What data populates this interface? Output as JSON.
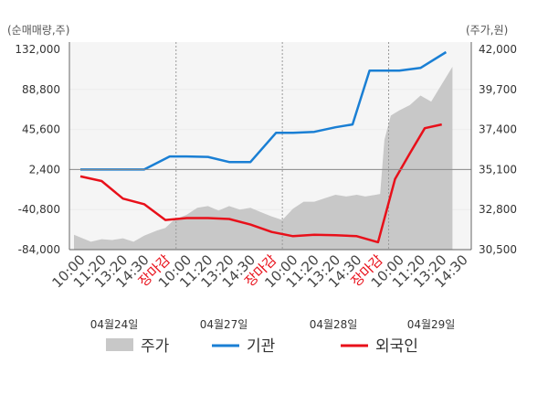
{
  "chart_data": {
    "type": "line",
    "left_axis_label": "(순매매량,주)",
    "right_axis_label": "(주가,원)",
    "left_ticks": [
      "132,000",
      "88,800",
      "45,600",
      "2,400",
      "-40,800",
      "-84,000"
    ],
    "right_ticks": [
      "42,000",
      "39,700",
      "37,400",
      "35,100",
      "32,800",
      "30,500"
    ],
    "left_range": [
      -84000,
      132000
    ],
    "right_range": [
      30500,
      42000
    ],
    "x_labels": [
      {
        "text": "10:00",
        "close": false
      },
      {
        "text": "11:20",
        "close": false
      },
      {
        "text": "13:20",
        "close": false
      },
      {
        "text": "14:30",
        "close": false
      },
      {
        "text": "장마감",
        "close": true
      },
      {
        "text": "10:00",
        "close": false
      },
      {
        "text": "11:20",
        "close": false
      },
      {
        "text": "13:20",
        "close": false
      },
      {
        "text": "14:30",
        "close": false
      },
      {
        "text": "장마감",
        "close": true
      },
      {
        "text": "10:00",
        "close": false
      },
      {
        "text": "11:20",
        "close": false
      },
      {
        "text": "13:20",
        "close": false
      },
      {
        "text": "14:30",
        "close": false
      },
      {
        "text": "장마감",
        "close": true
      },
      {
        "text": "10:00",
        "close": false
      },
      {
        "text": "11:20",
        "close": false
      },
      {
        "text": "13:20",
        "close": false
      },
      {
        "text": "14:30",
        "close": false
      }
    ],
    "dates": [
      "04월24일",
      "04월27일",
      "04월28일",
      "04월29일"
    ],
    "series": [
      {
        "name": "기관",
        "color": "#1a7fd4",
        "axis": "left",
        "x": [
          0,
          1,
          2,
          3,
          4.2,
          5,
          6,
          7,
          8,
          9.2,
          10,
          11,
          12,
          12.8,
          13.6,
          14.3,
          15,
          16,
          17.2
        ],
        "values": [
          2400,
          2400,
          2400,
          2400,
          16500,
          16500,
          16000,
          10500,
          10500,
          42000,
          42000,
          43000,
          48000,
          51000,
          109000,
          109000,
          109000,
          112000,
          129000
        ]
      },
      {
        "name": "외국인",
        "color": "#e8101a",
        "axis": "left",
        "x": [
          0,
          1,
          2,
          3,
          4,
          5,
          6,
          7,
          8,
          9,
          10,
          11,
          12,
          13,
          14,
          14.8,
          15.5,
          16.2,
          17
        ],
        "values": [
          -5000,
          -10000,
          -29000,
          -35000,
          -52000,
          -50000,
          -50000,
          -51000,
          -57000,
          -65000,
          -69500,
          -68000,
          -68500,
          -69500,
          -76000,
          -8000,
          20000,
          47000,
          51000
        ]
      }
    ],
    "price_series": {
      "name": "주가",
      "color": "#c8c8c8",
      "axis": "right",
      "x": [
        -0.3,
        0.5,
        1,
        1.5,
        2,
        2.5,
        3,
        3.6,
        4,
        4.4,
        5,
        5.5,
        6,
        6.5,
        7,
        7.5,
        8,
        8.5,
        9,
        9.5,
        10,
        10.5,
        11,
        11.5,
        12,
        12.5,
        13,
        13.4,
        13.9,
        14.1,
        14.3,
        14.6,
        15,
        15.5,
        16,
        16.5,
        17,
        17.5
      ],
      "values": [
        31350,
        30950,
        31100,
        31050,
        31150,
        30950,
        31300,
        31600,
        31750,
        32200,
        32500,
        32900,
        33000,
        32750,
        33000,
        32800,
        32900,
        32650,
        32400,
        32200,
        32850,
        33250,
        33250,
        33450,
        33650,
        33550,
        33650,
        33550,
        33650,
        33700,
        36800,
        38200,
        38500,
        38800,
        39350,
        39000,
        40000,
        41000
      ]
    },
    "legend": [
      {
        "label": "주가",
        "color": "#c8c8c8",
        "shape": "area"
      },
      {
        "label": "기관",
        "color": "#1a7fd4",
        "shape": "line"
      },
      {
        "label": "외국인",
        "color": "#e8101a",
        "shape": "line"
      }
    ],
    "day_dividers": [
      4.5,
      9.5,
      14.5
    ],
    "legend_position": "bottom"
  }
}
